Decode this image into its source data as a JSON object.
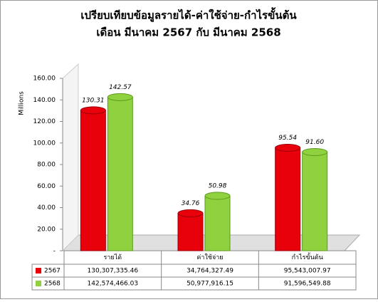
{
  "chart_data": {
    "type": "bar",
    "title": [
      "เปรียบเทียบข้อมูลรายได้-ค่าใช้จ่าย-กำไรขั้นต้น",
      "เดือน มีนาคม 2567 กับ มีนาคม 2568"
    ],
    "y_label": "Millions",
    "categories": [
      "รายได้",
      "ค่าใช้จ่าย",
      "กำไรขั้นต้น"
    ],
    "series": [
      {
        "name": "2567",
        "color": "#e8000b",
        "values": [
          130.31,
          34.76,
          95.54
        ],
        "value_labels": [
          "130.31",
          "34.76",
          "95.54"
        ],
        "table_labels": [
          "130,307,335.46",
          "34,764,327.49",
          "95,543,007.97"
        ]
      },
      {
        "name": "2568",
        "color": "#8fd13f",
        "values": [
          142.57,
          50.98,
          91.6
        ],
        "value_labels": [
          "142.57",
          "50.98",
          "91.60"
        ],
        "table_labels": [
          "142,574,466.03",
          "50,977,916.15",
          "91,596,549.88"
        ]
      }
    ],
    "ylim": [
      0,
      160
    ],
    "yticks": [
      {
        "value": 0,
        "label": "-"
      },
      {
        "value": 20,
        "label": "20.00"
      },
      {
        "value": 40,
        "label": "40.00"
      },
      {
        "value": 60,
        "label": "60.00"
      },
      {
        "value": 80,
        "label": "80.00"
      },
      {
        "value": 100,
        "label": "100.00"
      },
      {
        "value": 120,
        "label": "120.00"
      },
      {
        "value": 140,
        "label": "140.00"
      },
      {
        "value": 160,
        "label": "160.00"
      }
    ]
  }
}
